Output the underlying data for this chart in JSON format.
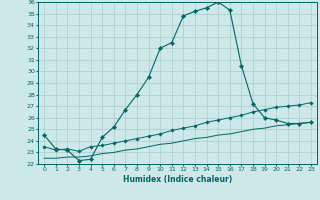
{
  "xlabel": "Humidex (Indice chaleur)",
  "background_color": "#cde8e8",
  "line_color": "#006666",
  "grid_color": "#aacccc",
  "xlim": [
    -0.5,
    23.5
  ],
  "ylim": [
    22,
    36
  ],
  "xticks": [
    0,
    1,
    2,
    3,
    4,
    5,
    6,
    7,
    8,
    9,
    10,
    11,
    12,
    13,
    14,
    15,
    16,
    17,
    18,
    19,
    20,
    21,
    22,
    23
  ],
  "yticks": [
    22,
    23,
    24,
    25,
    26,
    27,
    28,
    29,
    30,
    31,
    32,
    33,
    34,
    35,
    36
  ],
  "curve1_x": [
    0,
    1,
    2,
    3,
    4,
    5,
    6,
    7,
    8,
    9,
    10,
    11,
    12,
    13,
    14,
    15,
    16,
    17,
    18,
    19,
    20,
    21,
    22,
    23
  ],
  "curve1_y": [
    24.5,
    23.3,
    23.2,
    22.3,
    22.4,
    24.3,
    25.2,
    26.7,
    28.0,
    29.5,
    32.0,
    32.5,
    34.8,
    35.2,
    35.5,
    36.0,
    35.3,
    30.5,
    27.2,
    26.0,
    25.8,
    25.5,
    25.5,
    25.6
  ],
  "curve2_x": [
    0,
    1,
    2,
    3,
    4,
    5,
    6,
    7,
    8,
    9,
    10,
    11,
    12,
    13,
    14,
    15,
    16,
    17,
    18,
    19,
    20,
    21,
    22,
    23
  ],
  "curve2_y": [
    23.5,
    23.2,
    23.3,
    23.1,
    23.5,
    23.6,
    23.8,
    24.0,
    24.2,
    24.4,
    24.6,
    24.9,
    25.1,
    25.3,
    25.6,
    25.8,
    26.0,
    26.2,
    26.5,
    26.7,
    26.9,
    27.0,
    27.1,
    27.3
  ],
  "curve3_x": [
    0,
    1,
    2,
    3,
    4,
    5,
    6,
    7,
    8,
    9,
    10,
    11,
    12,
    13,
    14,
    15,
    16,
    17,
    18,
    19,
    20,
    21,
    22,
    23
  ],
  "curve3_y": [
    22.5,
    22.5,
    22.6,
    22.6,
    22.7,
    22.9,
    23.0,
    23.2,
    23.3,
    23.5,
    23.7,
    23.8,
    24.0,
    24.2,
    24.3,
    24.5,
    24.6,
    24.8,
    25.0,
    25.1,
    25.3,
    25.4,
    25.5,
    25.6
  ]
}
